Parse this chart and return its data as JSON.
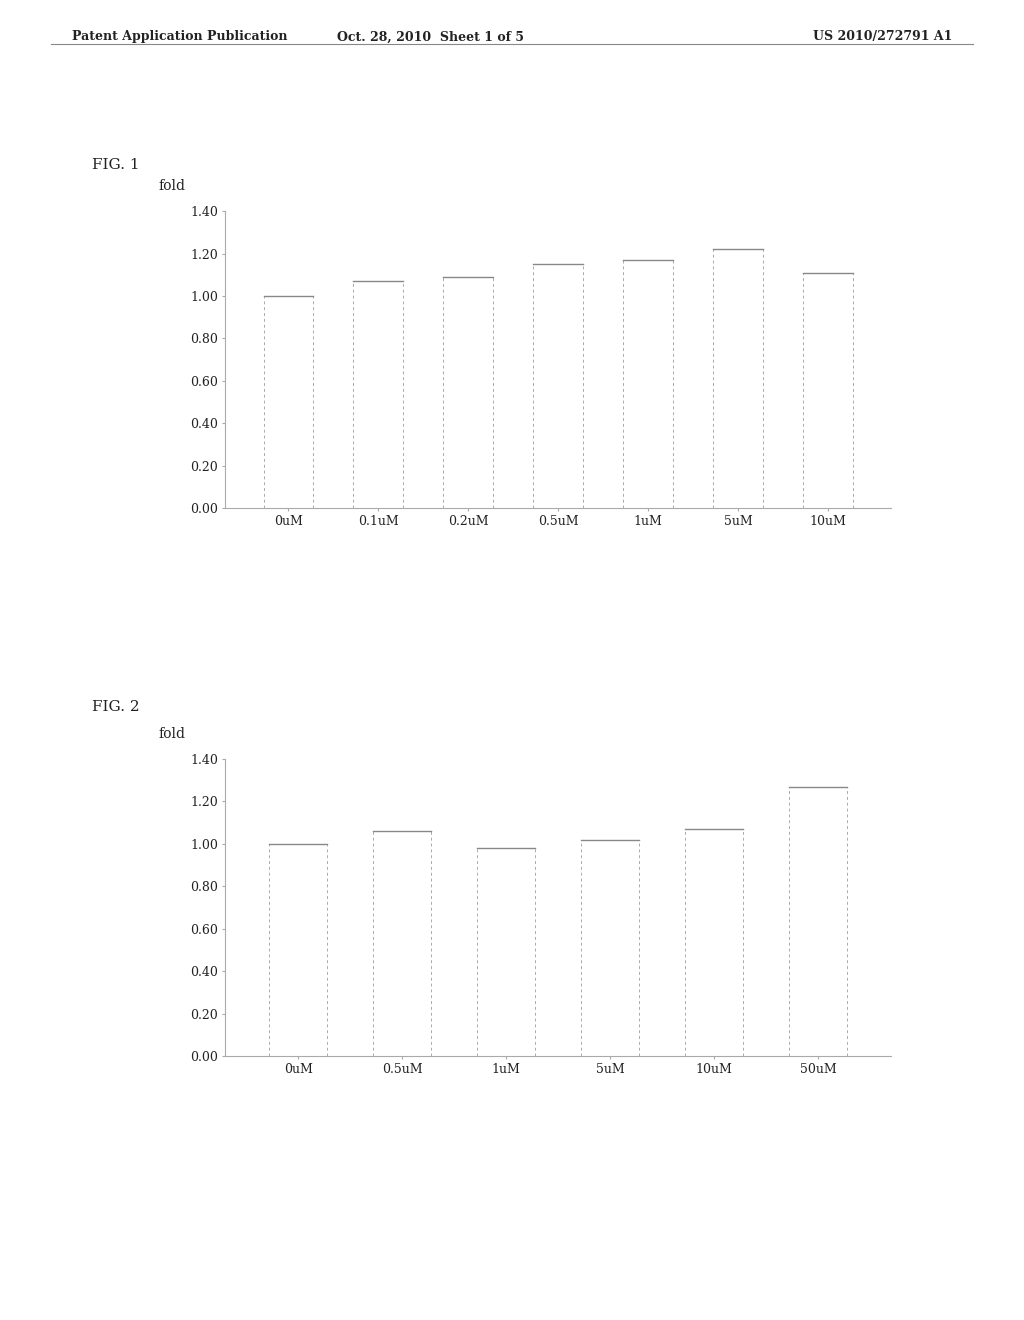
{
  "fig1": {
    "label": "FIG. 1",
    "ylabel": "fold",
    "categories": [
      "0uM",
      "0.1uM",
      "0.2uM",
      "0.5uM",
      "1uM",
      "5uM",
      "10uM"
    ],
    "values": [
      1.0,
      1.07,
      1.09,
      1.15,
      1.17,
      1.22,
      1.11
    ],
    "ylim": [
      0.0,
      1.4
    ],
    "yticks": [
      0.0,
      0.2,
      0.4,
      0.6,
      0.8,
      1.0,
      1.2,
      1.4
    ]
  },
  "fig2": {
    "label": "FIG. 2",
    "ylabel": "fold",
    "categories": [
      "0uM",
      "0.5uM",
      "1uM",
      "5uM",
      "10uM",
      "50uM"
    ],
    "values": [
      1.0,
      1.06,
      0.98,
      1.02,
      1.07,
      1.27
    ],
    "ylim": [
      0.0,
      1.4
    ],
    "yticks": [
      0.0,
      0.2,
      0.4,
      0.6,
      0.8,
      1.0,
      1.2,
      1.4
    ]
  },
  "header_left": "Patent Application Publication",
  "header_center": "Oct. 28, 2010  Sheet 1 of 5",
  "header_right": "US 2010/272791 A1",
  "background_color": "#ffffff",
  "bar_facecolor": "#ffffff",
  "bar_edgecolor": "#aaaaaa",
  "axis_color": "#aaaaaa",
  "text_color": "#222222",
  "font_size_tick": 9,
  "font_size_ylabel": 10,
  "font_size_header": 9,
  "font_size_fig_label": 11,
  "bar_width": 0.55
}
